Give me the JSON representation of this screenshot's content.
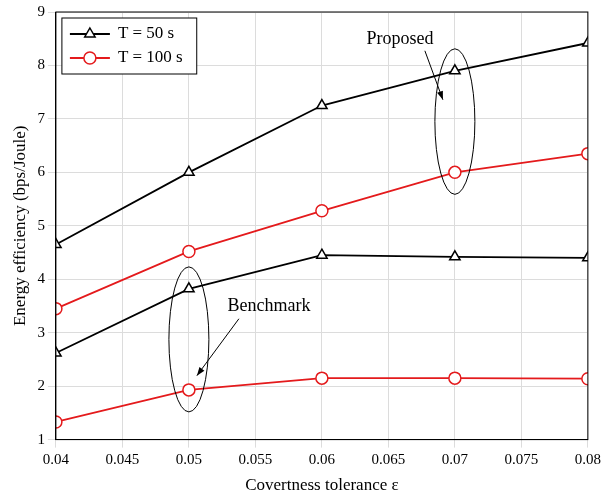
{
  "chart_data": {
    "type": "line",
    "x_label": "Covertness tolerance ε",
    "y_label": "Energy efficiency (bps/Joule)",
    "x": [
      0.04,
      0.05,
      0.06,
      0.07,
      0.08
    ],
    "series": [
      {
        "name": "T = 50 s",
        "color": "#000000",
        "marker": "triangle",
        "line_style": "solid",
        "values": [
          4.65,
          6.0,
          7.25,
          7.9,
          8.42
        ]
      },
      {
        "name": "T = 100 s",
        "color": "#e41a1c",
        "marker": "circle",
        "line_style": "solid",
        "values": [
          3.45,
          4.52,
          5.28,
          6.0,
          6.35
        ]
      },
      {
        "name": "T = 50 s",
        "color": "#000000",
        "marker": "triangle",
        "line_style": "solid",
        "values": [
          2.62,
          3.82,
          4.45,
          4.42,
          4.4
        ]
      },
      {
        "name": "T = 100 s",
        "color": "#e41a1c",
        "marker": "circle",
        "line_style": "solid",
        "values": [
          1.33,
          1.93,
          2.15,
          2.15,
          2.14
        ]
      }
    ],
    "annotations": [
      {
        "text": "Proposed"
      },
      {
        "text": "Benchmark"
      }
    ],
    "xlim": [
      0.04,
      0.08
    ],
    "xticks": [
      0.04,
      0.045,
      0.05,
      0.055,
      0.06,
      0.065,
      0.07,
      0.075,
      0.08
    ],
    "ylim": [
      1,
      9
    ],
    "yticks": [
      1,
      2,
      3,
      4,
      5,
      6,
      7,
      8,
      9
    ],
    "grid": true,
    "legend": "upper left"
  }
}
